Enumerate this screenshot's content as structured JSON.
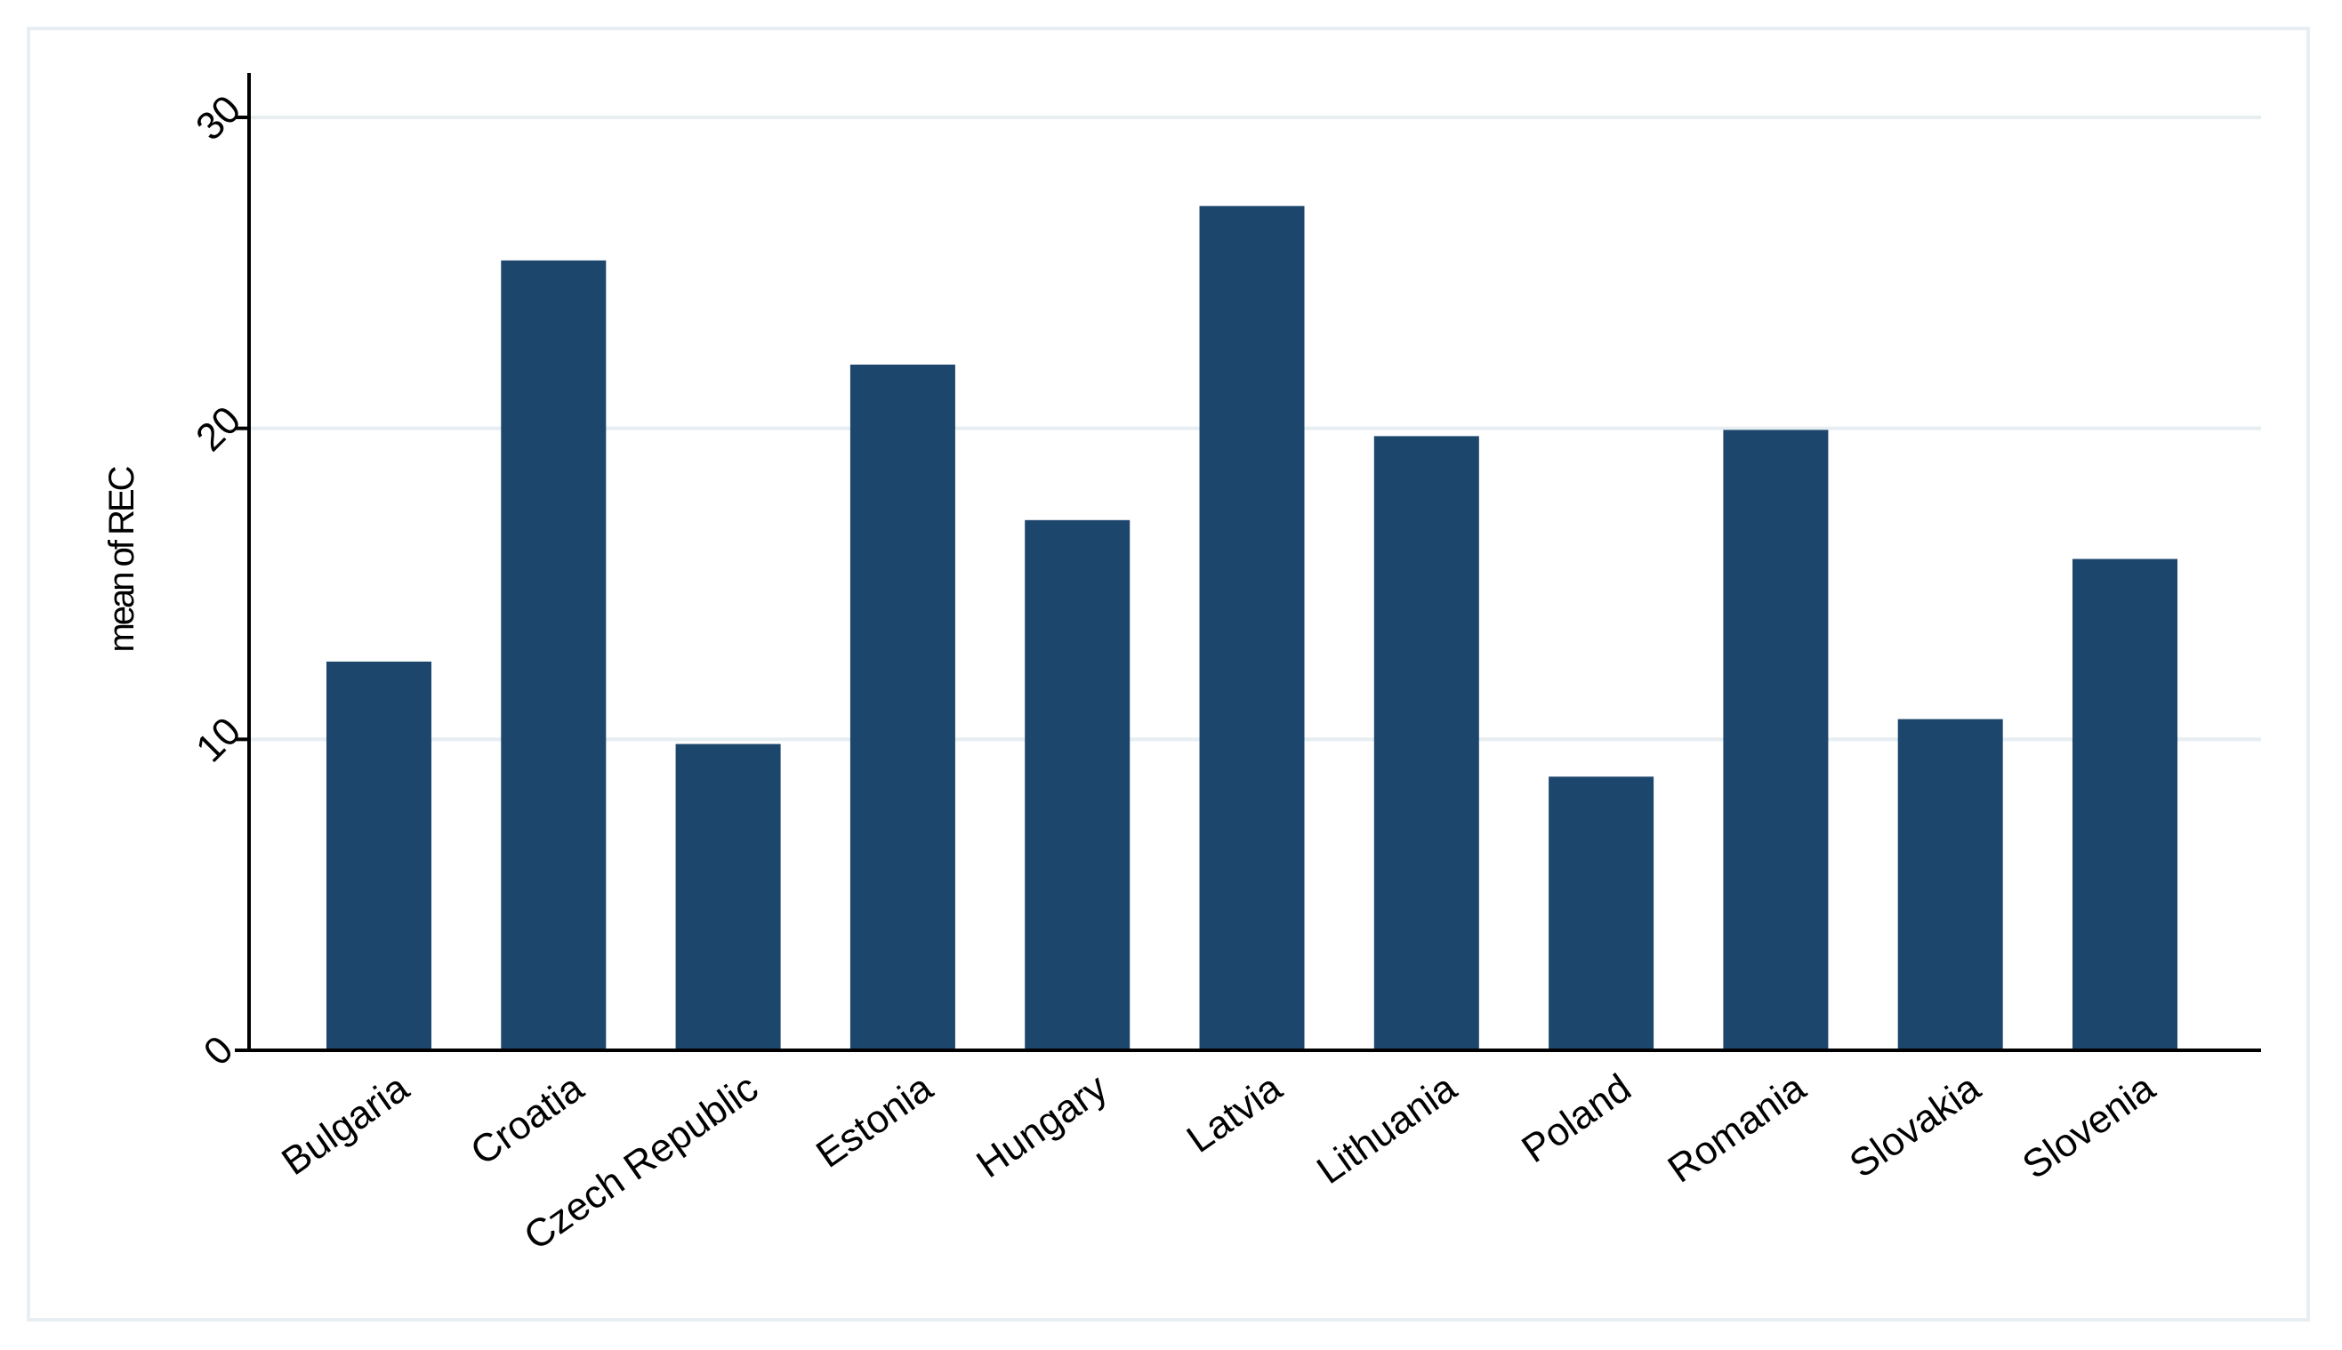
{
  "chart_data": {
    "type": "bar",
    "title": "",
    "xlabel": "",
    "ylabel": "mean of REC",
    "categories": [
      "Bulgaria",
      "Croatia",
      "Czech Republic",
      "Estonia",
      "Hungary",
      "Latvia",
      "Lithuania",
      "Poland",
      "Romania",
      "Slovakia",
      "Slovenia"
    ],
    "values": [
      12.5,
      25.4,
      9.85,
      22.05,
      17.05,
      27.15,
      19.75,
      8.8,
      19.95,
      10.65,
      15.8
    ],
    "ylim": [
      0,
      30
    ],
    "yticks": [
      "0",
      "10",
      "20",
      "30"
    ],
    "grid": true,
    "legend": "none",
    "colors": {
      "bar": "#1d466d",
      "grid": "#e6eef2",
      "axis": "#000000",
      "frame": "#e8eff3"
    }
  }
}
